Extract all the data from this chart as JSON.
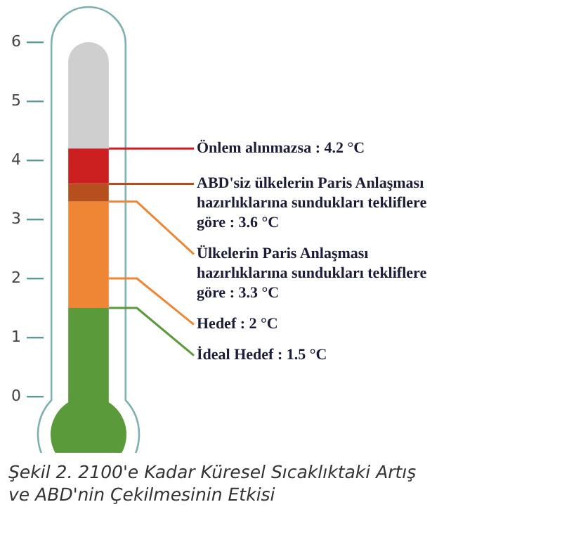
{
  "chart_data": {
    "type": "bar",
    "stacked": true,
    "title": "Şekil 2. 2100'e Kadar Küresel Sıcaklıktaki Artış ve ABD'nin Çekilmesinin Etkisi",
    "categories": [
      null
    ],
    "series": [
      {
        "color": "#5a9a3a",
        "values": [
          1.5
        ]
      },
      {
        "color": "#ee8636",
        "values": [
          0.5
        ]
      },
      {
        "color": "#ee8636",
        "values": [
          1.3
        ]
      },
      {
        "color": "#b5501e",
        "values": [
          0.3
        ]
      },
      {
        "color": "#cc1f1f",
        "values": [
          0.6
        ]
      },
      {
        "color": "#cfcfcf",
        "values": [
          1.8
        ]
      }
    ],
    "ylim": [
      0,
      6
    ],
    "yticks": [
      0,
      1,
      2,
      3,
      4,
      5,
      6
    ],
    "legend": false,
    "annotations": [
      "Önlem alınmazsa : 4.2 °C",
      "ABD'siz ülkelerin Paris Anlaşması hazırlıklarına sundukları tekliflere göre : 3.6 °C",
      "Ülkelerin Paris Anlaşması hazırlıklarına sundukları tekliflere göre : 3.3 °C",
      "Hedef : 2 °C",
      "İdeal Hedef : 1.5 °C"
    ]
  }
}
